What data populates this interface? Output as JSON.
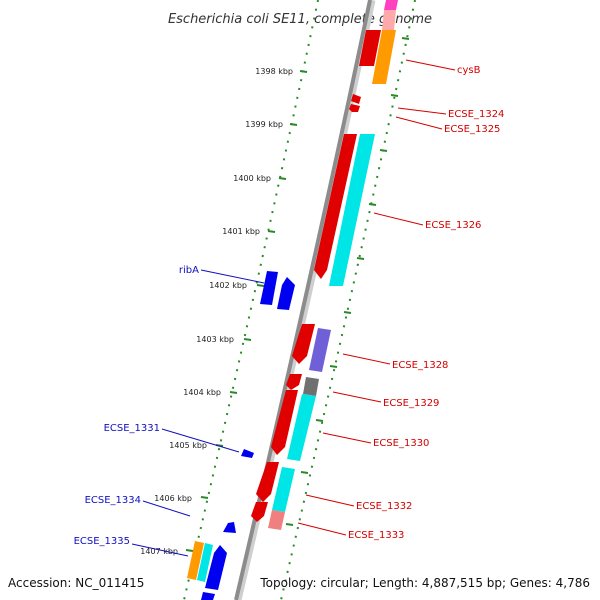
{
  "title": "Escherichia coli SE11, complete genome",
  "accession": "Accession: NC_011415",
  "topology": "Topology: circular; Length: 4,887,515 bp; Genes: 4,786",
  "ticks": [
    {
      "text": "1398 kbp"
    },
    {
      "text": "1399 kbp"
    },
    {
      "text": "1400 kbp"
    },
    {
      "text": "1401 kbp"
    },
    {
      "text": "1402 kbp"
    },
    {
      "text": "1403 kbp"
    },
    {
      "text": "1404 kbp"
    },
    {
      "text": "1405 kbp"
    },
    {
      "text": "1406 kbp"
    },
    {
      "text": "1407 kbp"
    }
  ],
  "gene_labels": [
    {
      "text": "cysB",
      "color": "#d40000"
    },
    {
      "text": "ECSE_1324",
      "color": "#d40000"
    },
    {
      "text": "ECSE_1325",
      "color": "#d40000"
    },
    {
      "text": "ECSE_1326",
      "color": "#d40000"
    },
    {
      "text": "ribA",
      "color": "#1010c0"
    },
    {
      "text": "ECSE_1328",
      "color": "#d40000"
    },
    {
      "text": "ECSE_1329",
      "color": "#d40000"
    },
    {
      "text": "ECSE_1330",
      "color": "#d40000"
    },
    {
      "text": "ECSE_1331",
      "color": "#1010c0"
    },
    {
      "text": "ECSE_1332",
      "color": "#d40000"
    },
    {
      "text": "ECSE_1334",
      "color": "#1010c0"
    },
    {
      "text": "ECSE_1333",
      "color": "#d40000"
    },
    {
      "text": "ECSE_1335",
      "color": "#1010c0"
    }
  ],
  "colors": {
    "backbone": "#8c8c8c",
    "forward_cds": "#e00000",
    "reverse_cds": "#0000f0",
    "tick_mark": "#2a8a2a",
    "cog_orange": "#ff9a00",
    "cog_cyan": "#00e5e5",
    "cog_purple": "#7060d8",
    "cog_gray": "#707070",
    "cog_pink": "#ff40c0",
    "cog_salmon": "#f08080"
  }
}
